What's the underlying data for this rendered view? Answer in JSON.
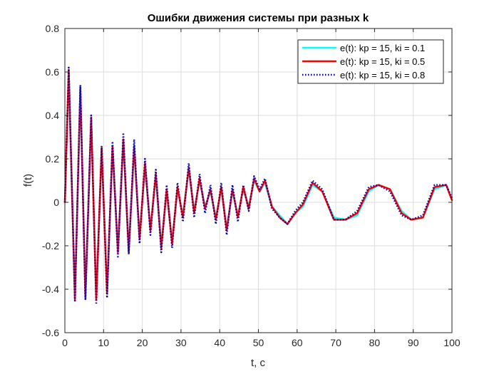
{
  "chart_data": {
    "type": "line",
    "title": "Ошибки движения системы при разных k",
    "xlabel": "t, c",
    "ylabel": "f(t)",
    "xlim": [
      0,
      100
    ],
    "ylim": [
      -0.6,
      0.8
    ],
    "xticks": [
      "0",
      "10",
      "20",
      "30",
      "40",
      "50",
      "60",
      "70",
      "80",
      "90",
      "100"
    ],
    "yticks": [
      "-0.6",
      "-0.4",
      "-0.2",
      "0",
      "0.2",
      "0.4",
      "0.6",
      "0.8"
    ],
    "grid": true,
    "legend_position": "top-right",
    "series": [
      {
        "name": "e(t): kp = 15, ki = 0.1",
        "color": "#00ffff",
        "style": "solid",
        "params": {
          "kp": 15,
          "ki": 0.1
        },
        "x": [
          0,
          1,
          2.6,
          4,
          5.3,
          6.8,
          8.1,
          9.5,
          10.9,
          12.3,
          13.7,
          15.1,
          16.5,
          17.9,
          19.3,
          20.7,
          22.1,
          23.5,
          24.9,
          26.3,
          27.7,
          29.1,
          30.5,
          32,
          33.4,
          34.8,
          36.2,
          37.6,
          39,
          40.4,
          41.8,
          43.3,
          44.7,
          46.1,
          47.5,
          48.9,
          50.3,
          51.7,
          53.5,
          55.5,
          57.5,
          59.5,
          61.5,
          64,
          66.5,
          69.5,
          72.5,
          75.5,
          78.5,
          81,
          84,
          87,
          89.5,
          92.5,
          95.5,
          98.5,
          100
        ],
        "y": [
          0,
          0.6,
          -0.44,
          0.52,
          -0.43,
          0.38,
          -0.44,
          0.24,
          -0.41,
          0.25,
          -0.22,
          0.28,
          -0.22,
          0.25,
          -0.16,
          0.17,
          -0.12,
          0.12,
          -0.2,
          0.05,
          -0.18,
          0.06,
          -0.06,
          0.15,
          -0.04,
          0.1,
          -0.02,
          0.05,
          -0.07,
          0.06,
          -0.12,
          0.05,
          -0.06,
          0.06,
          -0.02,
          0.1,
          0.05,
          0.09,
          -0.02,
          -0.06,
          -0.1,
          -0.05,
          -0.02,
          0.08,
          0.05,
          -0.07,
          -0.08,
          -0.06,
          0.05,
          0.08,
          0.06,
          -0.04,
          -0.08,
          -0.07,
          0.06,
          0.08,
          0.01
        ]
      },
      {
        "name": "e(t): kp = 15, ki = 0.5",
        "color": "#ff0000",
        "style": "solid",
        "params": {
          "kp": 15,
          "ki": 0.5
        },
        "x": [
          0,
          1,
          2.6,
          4,
          5.3,
          6.8,
          8.1,
          9.5,
          10.9,
          12.3,
          13.7,
          15.1,
          16.5,
          17.9,
          19.3,
          20.7,
          22.1,
          23.5,
          24.9,
          26.3,
          27.7,
          29.1,
          30.5,
          32,
          33.4,
          34.8,
          36.2,
          37.6,
          39,
          40.4,
          41.8,
          43.3,
          44.7,
          46.1,
          47.5,
          48.9,
          50.3,
          51.7,
          53.5,
          55.5,
          57.5,
          59.5,
          61.5,
          64,
          66.5,
          69.5,
          72.5,
          75.5,
          78.5,
          81,
          84,
          87,
          89.5,
          92.5,
          95.5,
          98.5,
          100
        ],
        "y": [
          0,
          0.61,
          -0.45,
          0.53,
          -0.44,
          0.39,
          -0.45,
          0.25,
          -0.42,
          0.26,
          -0.23,
          0.29,
          -0.23,
          0.26,
          -0.17,
          0.18,
          -0.13,
          0.13,
          -0.21,
          0.06,
          -0.19,
          0.07,
          -0.07,
          0.16,
          -0.05,
          0.11,
          -0.03,
          0.06,
          -0.08,
          0.07,
          -0.13,
          0.06,
          -0.07,
          0.07,
          -0.03,
          0.11,
          0.05,
          0.1,
          -0.02,
          -0.07,
          -0.1,
          -0.05,
          -0.01,
          0.09,
          0.05,
          -0.08,
          -0.08,
          -0.05,
          0.06,
          0.08,
          0.06,
          -0.05,
          -0.08,
          -0.07,
          0.07,
          0.08,
          0.01
        ]
      },
      {
        "name": "e(t): kp = 15, ki = 0.8",
        "color": "#0000a8",
        "style": "dotted",
        "params": {
          "kp": 15,
          "ki": 0.8
        },
        "x": [
          0,
          1,
          2.6,
          4,
          5.3,
          6.8,
          8.1,
          9.5,
          10.9,
          12.3,
          13.7,
          15.1,
          16.5,
          17.9,
          19.3,
          20.7,
          22.1,
          23.5,
          24.9,
          26.3,
          27.7,
          29.1,
          30.5,
          32,
          33.4,
          34.8,
          36.2,
          37.6,
          39,
          40.4,
          41.8,
          43.3,
          44.7,
          46.1,
          47.5,
          48.9,
          50.3,
          51.7,
          53.5,
          55.5,
          57.5,
          59.5,
          61.5,
          64,
          66.5,
          69.5,
          72.5,
          75.5,
          78.5,
          81,
          84,
          87,
          89.5,
          92.5,
          95.5,
          98.5,
          100
        ],
        "y": [
          0,
          0.62,
          -0.46,
          0.54,
          -0.45,
          0.4,
          -0.47,
          0.26,
          -0.44,
          0.28,
          -0.25,
          0.32,
          -0.24,
          0.29,
          -0.19,
          0.2,
          -0.15,
          0.15,
          -0.23,
          0.08,
          -0.21,
          0.09,
          -0.09,
          0.18,
          -0.07,
          0.13,
          -0.05,
          0.08,
          -0.1,
          0.09,
          -0.15,
          0.08,
          -0.09,
          0.08,
          -0.04,
          0.12,
          0.06,
          0.11,
          -0.03,
          -0.07,
          -0.1,
          -0.04,
          0,
          0.1,
          0.06,
          -0.08,
          -0.08,
          -0.04,
          0.07,
          0.08,
          0.05,
          -0.06,
          -0.08,
          -0.06,
          0.08,
          0.08,
          0.02
        ]
      }
    ]
  }
}
